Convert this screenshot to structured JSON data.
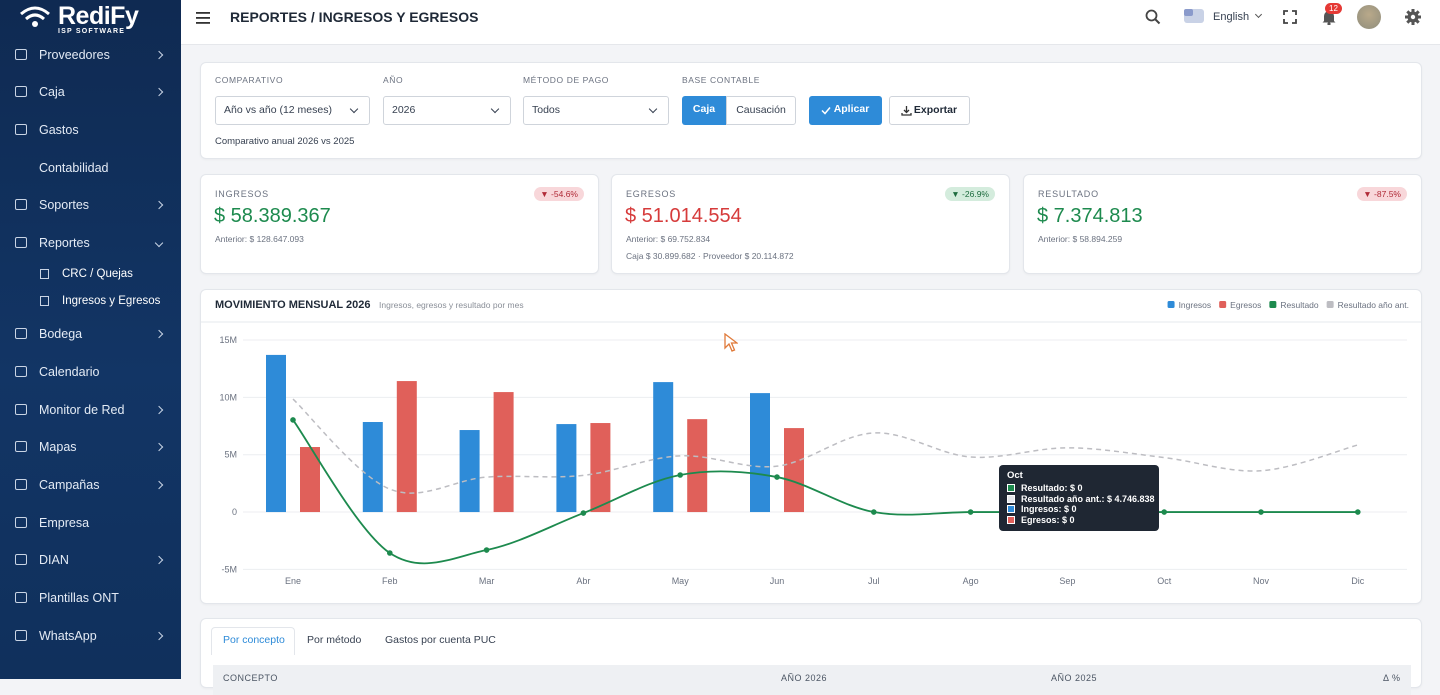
{
  "sidebar": {
    "brand": "RediFy",
    "tagline": "ISP SOFTWARE",
    "menu": [
      "Proveedores",
      "Caja",
      "Gastos",
      "Contabilidad",
      "Soportes",
      "Reportes",
      "Bodega",
      "Calendario",
      "Monitor de Red",
      "Mapas",
      "Campañas",
      "Empresa",
      "DIAN",
      "Plantillas ONT",
      "WhatsApp"
    ],
    "submenu": [
      "CRC / Quejas",
      "Ingresos y Egresos"
    ]
  },
  "topbar": {
    "title": "REPORTES / INGRESOS Y EGRESOS",
    "language": "English",
    "notifications": "12"
  },
  "filters": {
    "comparativo": {
      "label": "COMPARATIVO",
      "value": "Año vs año (12 meses)"
    },
    "anio": {
      "label": "AÑO",
      "value": "2026"
    },
    "metodo": {
      "label": "MÉTODO DE PAGO",
      "value": "Todos"
    },
    "base": {
      "label": "BASE CONTABLE",
      "options": [
        "Caja",
        "Causación"
      ]
    },
    "apply": "Aplicar",
    "export": "Exportar",
    "note": "Comparativo anual 2026 vs 2025"
  },
  "kpis": [
    {
      "label": "INGRESOS",
      "value": "$ 58.389.367",
      "badge": "▼ -54.6%",
      "previous": "Anterior: $ 128.647.093"
    },
    {
      "label": "EGRESOS",
      "value": "$ 51.014.554",
      "badge": "▼ -26.9%",
      "previous": "Anterior: $ 69.752.834",
      "detail": "Caja $ 30.899.682 · Proveedor $ 20.114.872"
    },
    {
      "label": "RESULTADO",
      "value": "$ 7.374.813",
      "badge": "▼ -87.5%",
      "previous": "Anterior: $ 58.894.259"
    }
  ],
  "chart_data": {
    "type": "bar",
    "title": "MOVIMIENTO MENSUAL 2026",
    "subtitle": "Ingresos, egresos y resultado por mes",
    "categories": [
      "Ene",
      "Feb",
      "Mar",
      "Abr",
      "May",
      "Jun",
      "Jul",
      "Ago",
      "Sep",
      "Oct",
      "Nov",
      "Dic"
    ],
    "series": [
      {
        "name": "Ingresos",
        "type": "bar",
        "color": "#2e8bd8",
        "values": [
          13700000,
          7850000,
          7150000,
          7670000,
          11330000,
          10370000,
          0,
          0,
          0,
          0,
          0,
          0
        ]
      },
      {
        "name": "Egresos",
        "type": "bar",
        "color": "#e0605a",
        "values": [
          5670000,
          11420000,
          10460000,
          7760000,
          8100000,
          7320000,
          0,
          0,
          0,
          0,
          0,
          0
        ]
      },
      {
        "name": "Resultado",
        "type": "line",
        "color": "#1d8a4e",
        "markers": true,
        "values": [
          8030000,
          -3570000,
          -3310000,
          -90000,
          3230000,
          3050000,
          0,
          0,
          0,
          0,
          0,
          0
        ]
      },
      {
        "name": "Resultado año ant.",
        "type": "line",
        "color": "#bdbdc2",
        "dashed": true,
        "values": [
          9850000,
          2000000,
          3050000,
          3200000,
          4900000,
          4000000,
          6900000,
          4800000,
          5600000,
          4750000,
          3600000,
          5850000
        ]
      }
    ],
    "ylim": [
      -5000000,
      15000000
    ],
    "yticks": [
      {
        "value": -5000000,
        "label": "-5M"
      },
      0,
      {
        "value": 5000000,
        "label": "5M"
      },
      {
        "value": 10000000,
        "label": "10M"
      },
      {
        "value": 15000000,
        "label": "15M"
      }
    ],
    "grid": true,
    "legend": "top-right",
    "tooltip": {
      "title": "Oct",
      "items": [
        "Resultado: $ 0",
        "Resultado año ant.: $ 4.746.838",
        "Ingresos: $ 0",
        "Egresos: $ 0"
      ]
    }
  },
  "tabs": [
    "Por concepto",
    "Por método",
    "Gastos por cuenta PUC"
  ],
  "table": {
    "headers": [
      "CONCEPTO",
      "AÑO 2026",
      "AÑO 2025",
      "Δ %"
    ]
  }
}
